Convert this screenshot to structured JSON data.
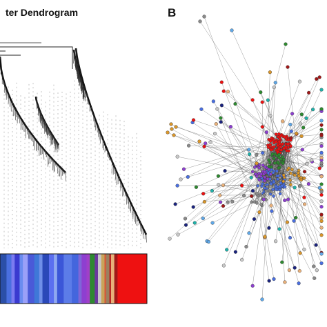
{
  "panel_a": {
    "title": "ter Dendrogram",
    "color_bar": [
      {
        "color": "#2b4fa8",
        "weight": 4
      },
      {
        "color": "#4a6fe0",
        "weight": 3
      },
      {
        "color": "#7b7bf0",
        "weight": 2
      },
      {
        "color": "#3a3ad0",
        "weight": 3
      },
      {
        "color": "#6a8cf0",
        "weight": 2
      },
      {
        "color": "#9aa0f8",
        "weight": 3
      },
      {
        "color": "#4a5ad8",
        "weight": 4
      },
      {
        "color": "#3f78d8",
        "weight": 3
      },
      {
        "color": "#6f8fe8",
        "weight": 2
      },
      {
        "color": "#2a48b8",
        "weight": 4
      },
      {
        "color": "#5b6ff0",
        "weight": 3
      },
      {
        "color": "#8fa8f0",
        "weight": 2
      },
      {
        "color": "#3b56d8",
        "weight": 4
      },
      {
        "color": "#5c7ce8",
        "weight": 5
      },
      {
        "color": "#4466dd",
        "weight": 4
      },
      {
        "color": "#7f66d8",
        "weight": 2
      },
      {
        "color": "#8e3fd0",
        "weight": 3
      },
      {
        "color": "#a040c8",
        "weight": 2
      },
      {
        "color": "#2e8a30",
        "weight": 3
      },
      {
        "color": "#6b3a9e",
        "weight": 2
      },
      {
        "color": "#c8c8c8",
        "weight": 2
      },
      {
        "color": "#c9a45a",
        "weight": 2
      },
      {
        "color": "#d35a3a",
        "weight": 1
      },
      {
        "color": "#9a8060",
        "weight": 2
      },
      {
        "color": "#b82020",
        "weight": 1
      },
      {
        "color": "#e8b07a",
        "weight": 2
      },
      {
        "color": "#a01818",
        "weight": 2
      },
      {
        "color": "#ee1111",
        "weight": 18
      }
    ]
  },
  "panel_b": {
    "label": "B",
    "module_colors": [
      "#ee1111",
      "#4a6fe0",
      "#8e3fd0",
      "#2e8a30",
      "#d9962b",
      "#8a8a8a",
      "#5fa8e8",
      "#1a237e",
      "#c8c8c8",
      "#e8b07a",
      "#a01818",
      "#20b2aa"
    ]
  }
}
